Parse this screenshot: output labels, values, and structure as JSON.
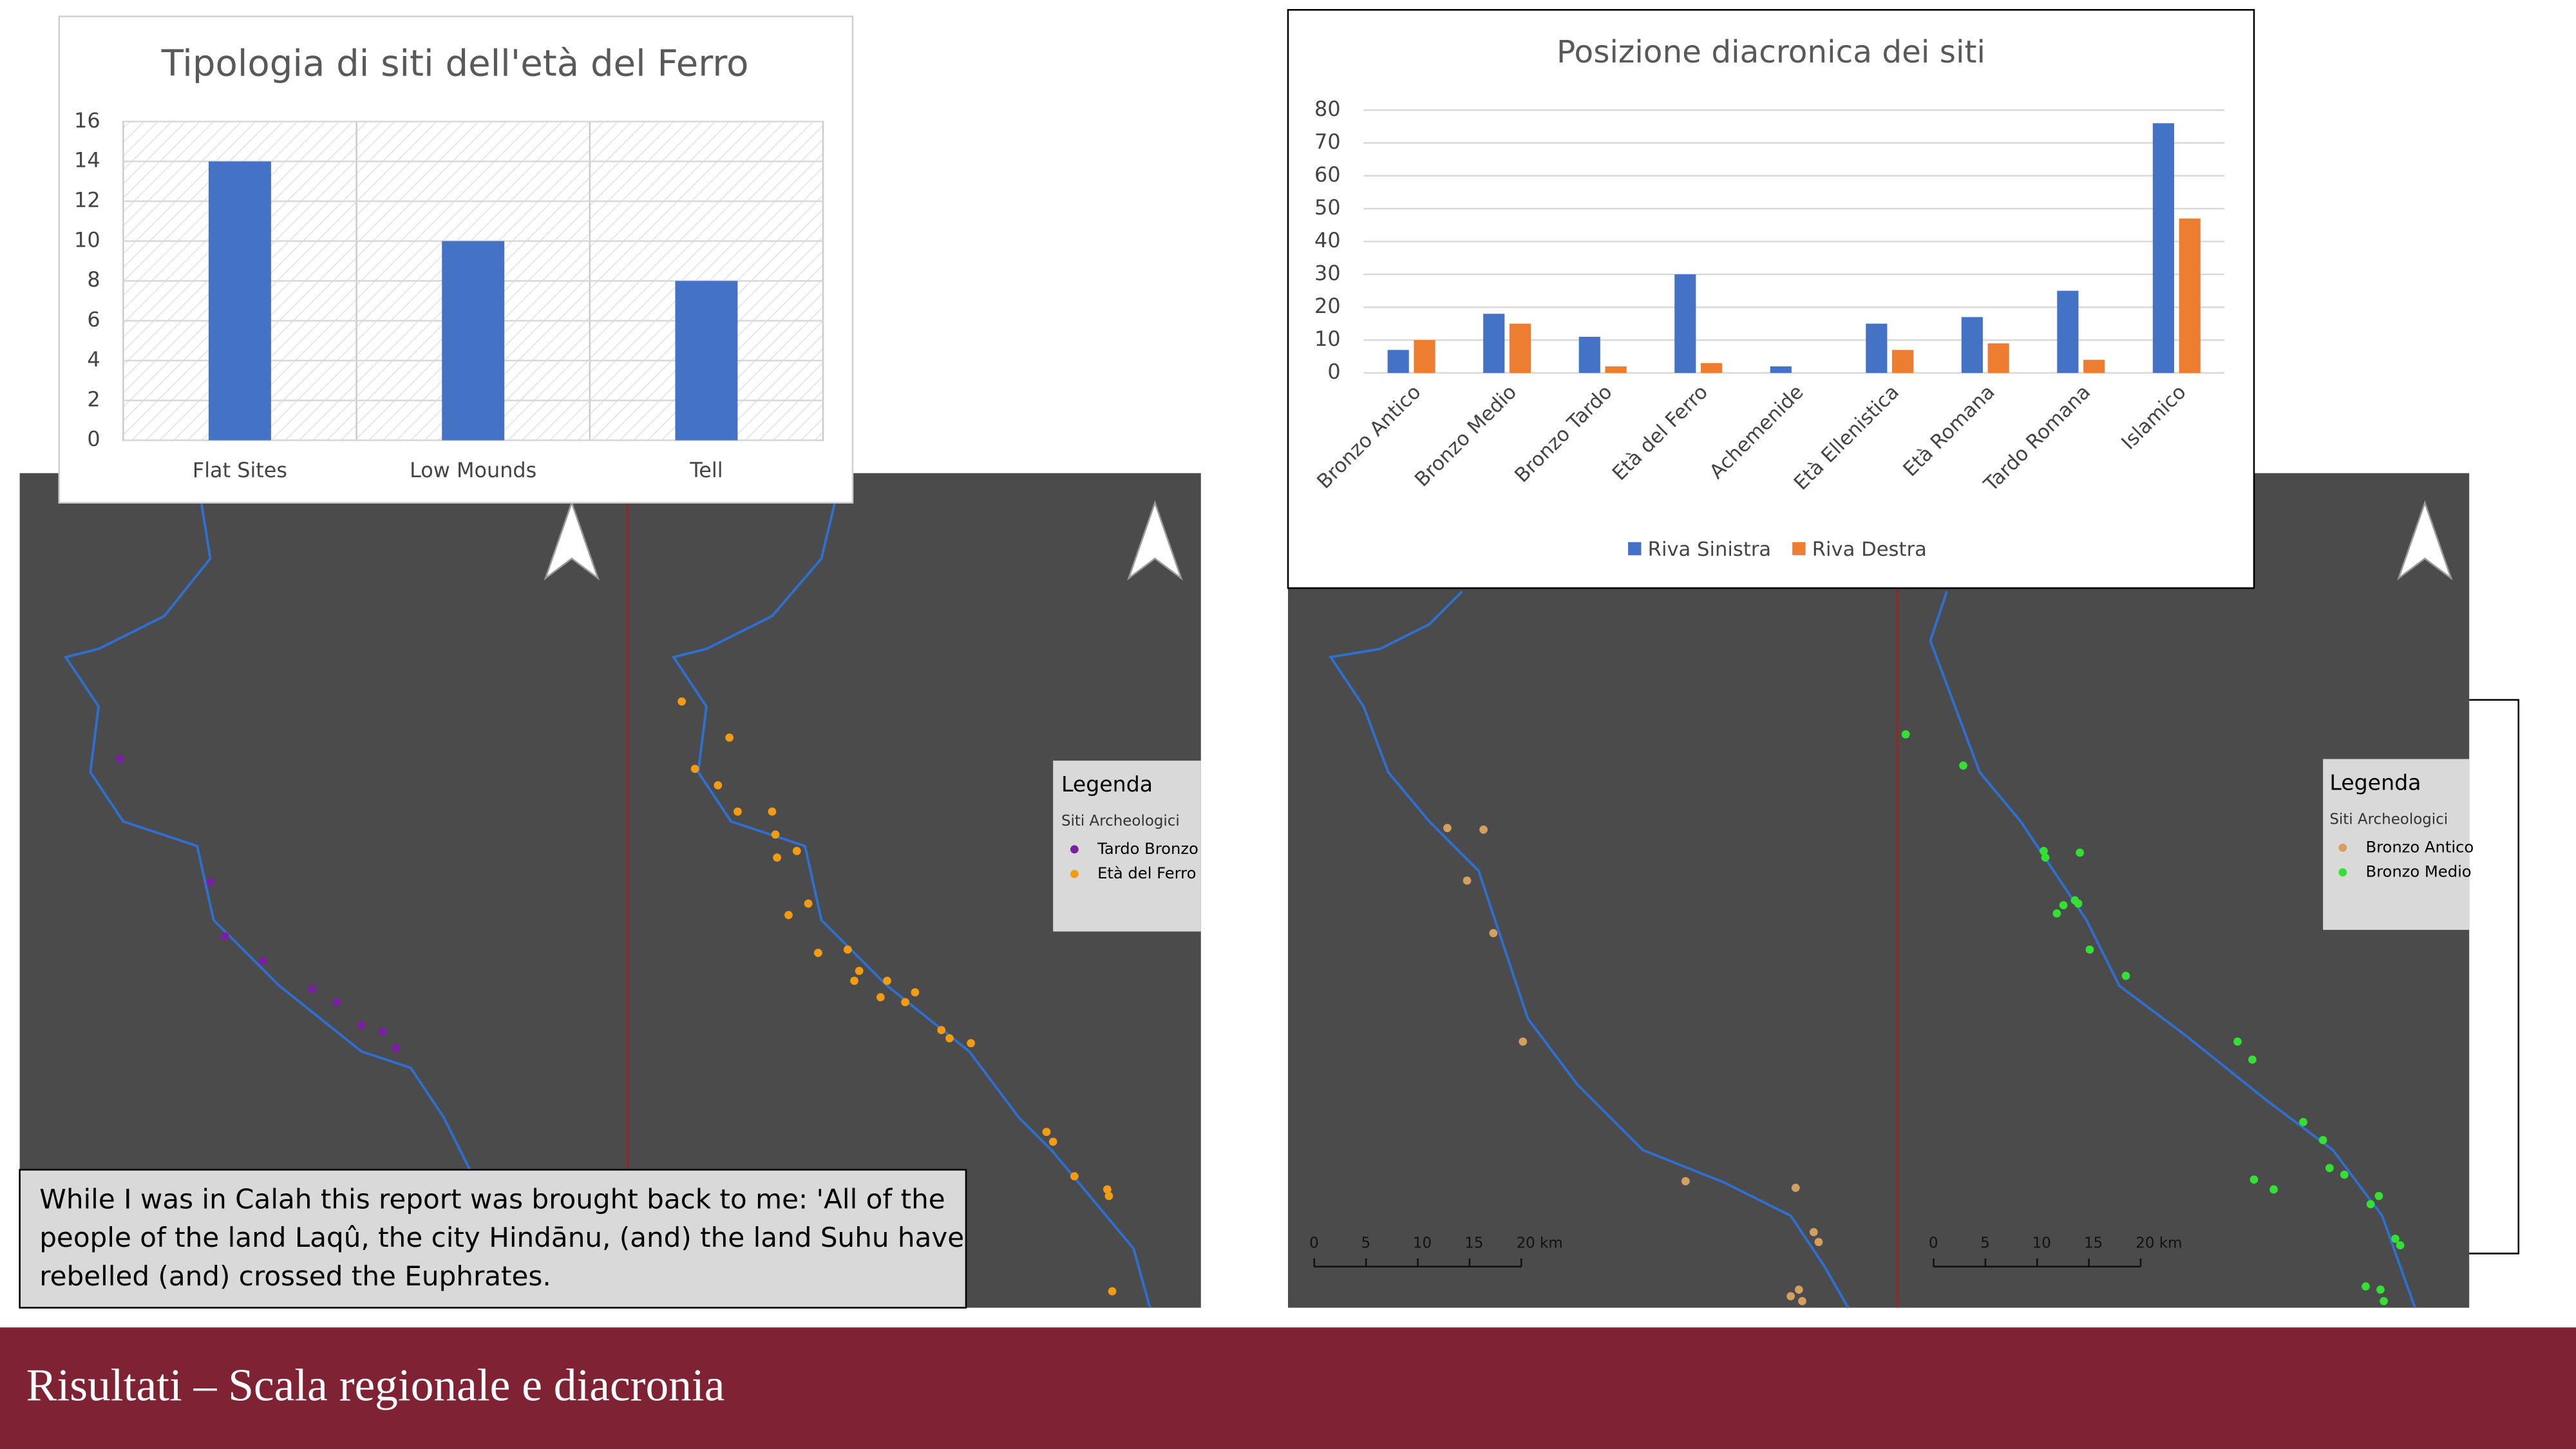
{
  "chart_data": [
    {
      "type": "bar",
      "title": "Tipologia di siti dell'età del Ferro",
      "categories": [
        "Flat Sites",
        "Low Mounds",
        "Tell"
      ],
      "values": [
        14,
        10,
        8
      ],
      "color": "#4472c4",
      "ylim": [
        0,
        16
      ],
      "yticks": [
        0,
        2,
        4,
        6,
        8,
        10,
        12,
        14,
        16
      ],
      "grid": true
    },
    {
      "type": "grouped-bar",
      "title": "Posizione diacronica dei siti",
      "categories": [
        "Bronzo Antico",
        "Bronzo Medio",
        "Bronzo Tardo",
        "Età del Ferro",
        "Achemenide",
        "Età Ellenistica",
        "Età Romana",
        "Tardo Romana",
        "Islamico"
      ],
      "series": [
        {
          "name": "Riva Sinistra",
          "color": "#4472c4",
          "values": [
            7,
            18,
            11,
            30,
            2,
            15,
            17,
            25,
            76
          ]
        },
        {
          "name": "Riva Destra",
          "color": "#ed7d31",
          "values": [
            10,
            15,
            2,
            3,
            0,
            7,
            9,
            4,
            47
          ]
        }
      ],
      "ylim": [
        0,
        80
      ],
      "yticks": [
        0,
        10,
        20,
        30,
        40,
        50,
        60,
        70,
        80
      ],
      "grid": true,
      "legend": "bottom"
    }
  ],
  "maps": [
    {
      "legend_title": "Legenda",
      "legend_subtitle": "Siti Archeologici",
      "legend_items": [
        {
          "label": "Tardo Bronzo",
          "color": "#7a1fa2"
        },
        {
          "label": "Età del Ferro",
          "color": "#f39c12"
        }
      ]
    },
    {
      "legend_title": "Legenda",
      "legend_subtitle": "Siti Archeologici",
      "legend_items": [
        {
          "label": "Bronzo Antico",
          "color": "#d4a060"
        },
        {
          "label": "Bronzo Medio",
          "color": "#33e033"
        }
      ],
      "scale_labels": [
        "0",
        "5",
        "10",
        "15",
        "20 km"
      ]
    }
  ],
  "quote": [
    "While I was in Calah this report was brought back to me: 'All of the",
    "people of the land Laqû, the city Hindānu, (and) the land Suhu have",
    "rebelled (and) crossed the Euphrates."
  ],
  "footer": {
    "title": "Risultati – Scala regionale e diacronia"
  }
}
